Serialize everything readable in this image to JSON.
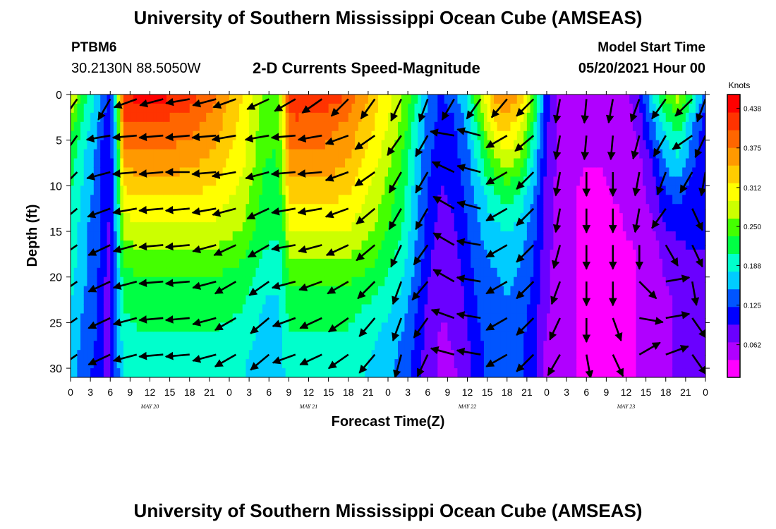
{
  "page": {
    "title_top": "University of Southern Mississippi Ocean Cube (AMSEAS)",
    "title_bottom": "University of Southern Mississippi Ocean Cube (AMSEAS)",
    "station": "PTBM6",
    "coordinates": "30.2130N  88.5050W",
    "product": "2-D Currents Speed-Magnitude",
    "model_start_label": "Model Start Time",
    "model_start_value": "05/20/2021 Hour 00"
  },
  "chart_data": {
    "type": "heatmap",
    "xlabel": "Forecast Time(Z)",
    "ylabel": "Depth (ft)",
    "x_ticks": [
      "0",
      "3",
      "6",
      "9",
      "12",
      "15",
      "18",
      "21",
      "0",
      "3",
      "6",
      "9",
      "12",
      "15",
      "18",
      "21",
      "0",
      "3",
      "6",
      "9",
      "12",
      "15",
      "18",
      "21",
      "0",
      "3",
      "6",
      "9",
      "12",
      "15",
      "18",
      "21",
      "0"
    ],
    "x_range_hours": [
      0,
      96
    ],
    "day_labels": [
      "MAY 20",
      "MAY 21",
      "MAY 22",
      "MAY 23"
    ],
    "day_label_hours": [
      12,
      36,
      60,
      84
    ],
    "y_ticks": [
      0,
      5,
      10,
      15,
      20,
      25,
      30
    ],
    "ylim": [
      31,
      0
    ],
    "colorbar": {
      "unit": "Knots",
      "ticks": [
        "0.438",
        "0.375",
        "0.312",
        "0.250",
        "0.188",
        "0.125",
        "0.062"
      ],
      "tick_values": [
        0.438,
        0.375,
        0.312,
        0.25,
        0.188,
        0.125,
        0.062
      ],
      "range": [
        0.01,
        0.46
      ],
      "colors": [
        "#ff00ff",
        "#b000ff",
        "#6a00ff",
        "#0000ff",
        "#0055ff",
        "#00ccff",
        "#00ffcc",
        "#00ff44",
        "#44ff00",
        "#ccff00",
        "#ffff00",
        "#ffcc00",
        "#ff9900",
        "#ff6600",
        "#ff3300",
        "#ff0000"
      ]
    },
    "depth_levels_ft": [
      0,
      3,
      7,
      11,
      15,
      19,
      23,
      27,
      31
    ],
    "speed_field": {
      "time_hours": [
        0,
        2,
        4,
        5,
        6,
        7,
        8,
        10,
        14,
        18,
        22,
        26,
        29,
        31,
        32,
        33,
        34,
        38,
        42,
        46,
        50,
        52,
        54,
        56,
        58,
        60,
        62,
        64,
        66,
        68,
        70,
        72,
        74,
        76,
        78,
        80,
        82,
        84,
        86,
        88,
        90,
        92,
        94,
        96
      ],
      "speed_knots": [
        [
          0.3,
          0.22,
          0.17,
          0.13,
          0.12,
          0.22,
          0.43,
          0.44,
          0.44,
          0.42,
          0.38,
          0.32,
          0.26,
          0.25,
          0.3,
          0.42,
          0.43,
          0.43,
          0.4,
          0.33,
          0.27,
          0.22,
          0.15,
          0.12,
          0.14,
          0.18,
          0.28,
          0.35,
          0.38,
          0.35,
          0.25,
          0.1,
          0.06,
          0.05,
          0.04,
          0.05,
          0.06,
          0.05,
          0.1,
          0.18,
          0.24,
          0.28,
          0.22,
          0.12
        ],
        [
          0.25,
          0.2,
          0.16,
          0.12,
          0.11,
          0.2,
          0.4,
          0.4,
          0.4,
          0.39,
          0.36,
          0.31,
          0.25,
          0.24,
          0.28,
          0.39,
          0.4,
          0.39,
          0.37,
          0.32,
          0.26,
          0.2,
          0.14,
          0.11,
          0.12,
          0.16,
          0.24,
          0.32,
          0.34,
          0.3,
          0.22,
          0.1,
          0.06,
          0.05,
          0.04,
          0.04,
          0.05,
          0.05,
          0.08,
          0.15,
          0.2,
          0.22,
          0.16,
          0.11
        ],
        [
          0.22,
          0.18,
          0.14,
          0.11,
          0.1,
          0.19,
          0.36,
          0.37,
          0.37,
          0.36,
          0.34,
          0.3,
          0.24,
          0.23,
          0.26,
          0.37,
          0.37,
          0.37,
          0.35,
          0.3,
          0.24,
          0.18,
          0.13,
          0.1,
          0.11,
          0.14,
          0.2,
          0.26,
          0.28,
          0.26,
          0.18,
          0.09,
          0.06,
          0.05,
          0.04,
          0.04,
          0.05,
          0.05,
          0.06,
          0.1,
          0.16,
          0.18,
          0.13,
          0.1
        ],
        [
          0.21,
          0.17,
          0.14,
          0.1,
          0.1,
          0.18,
          0.31,
          0.32,
          0.32,
          0.32,
          0.31,
          0.28,
          0.23,
          0.22,
          0.24,
          0.33,
          0.33,
          0.33,
          0.32,
          0.28,
          0.22,
          0.17,
          0.12,
          0.09,
          0.1,
          0.13,
          0.17,
          0.2,
          0.22,
          0.2,
          0.15,
          0.08,
          0.05,
          0.04,
          0.03,
          0.03,
          0.04,
          0.04,
          0.05,
          0.08,
          0.12,
          0.13,
          0.11,
          0.1
        ],
        [
          0.2,
          0.16,
          0.13,
          0.1,
          0.09,
          0.17,
          0.27,
          0.28,
          0.28,
          0.28,
          0.28,
          0.26,
          0.22,
          0.21,
          0.22,
          0.29,
          0.29,
          0.29,
          0.29,
          0.26,
          0.21,
          0.16,
          0.11,
          0.08,
          0.09,
          0.12,
          0.15,
          0.17,
          0.18,
          0.17,
          0.13,
          0.08,
          0.05,
          0.04,
          0.03,
          0.03,
          0.03,
          0.04,
          0.04,
          0.06,
          0.09,
          0.1,
          0.1,
          0.1
        ],
        [
          0.19,
          0.16,
          0.13,
          0.1,
          0.09,
          0.16,
          0.23,
          0.24,
          0.24,
          0.24,
          0.24,
          0.23,
          0.2,
          0.19,
          0.2,
          0.25,
          0.25,
          0.25,
          0.25,
          0.23,
          0.19,
          0.15,
          0.1,
          0.07,
          0.08,
          0.11,
          0.14,
          0.15,
          0.16,
          0.15,
          0.12,
          0.07,
          0.05,
          0.04,
          0.03,
          0.03,
          0.03,
          0.03,
          0.04,
          0.05,
          0.07,
          0.08,
          0.09,
          0.09
        ],
        [
          0.18,
          0.15,
          0.12,
          0.09,
          0.08,
          0.15,
          0.21,
          0.22,
          0.22,
          0.22,
          0.22,
          0.21,
          0.18,
          0.17,
          0.19,
          0.22,
          0.22,
          0.22,
          0.22,
          0.2,
          0.17,
          0.13,
          0.09,
          0.07,
          0.07,
          0.1,
          0.13,
          0.14,
          0.15,
          0.14,
          0.11,
          0.07,
          0.05,
          0.04,
          0.03,
          0.03,
          0.03,
          0.03,
          0.04,
          0.05,
          0.06,
          0.07,
          0.08,
          0.09
        ],
        [
          0.17,
          0.14,
          0.12,
          0.09,
          0.08,
          0.14,
          0.19,
          0.2,
          0.2,
          0.2,
          0.2,
          0.19,
          0.17,
          0.16,
          0.18,
          0.2,
          0.2,
          0.2,
          0.2,
          0.18,
          0.15,
          0.12,
          0.08,
          0.06,
          0.07,
          0.09,
          0.12,
          0.14,
          0.14,
          0.13,
          0.1,
          0.06,
          0.04,
          0.04,
          0.03,
          0.03,
          0.03,
          0.03,
          0.04,
          0.05,
          0.06,
          0.07,
          0.08,
          0.08
        ],
        [
          0.16,
          0.14,
          0.11,
          0.09,
          0.08,
          0.14,
          0.18,
          0.19,
          0.19,
          0.19,
          0.19,
          0.18,
          0.16,
          0.15,
          0.17,
          0.19,
          0.19,
          0.19,
          0.19,
          0.17,
          0.14,
          0.11,
          0.08,
          0.06,
          0.06,
          0.09,
          0.12,
          0.13,
          0.14,
          0.13,
          0.1,
          0.06,
          0.04,
          0.04,
          0.03,
          0.03,
          0.03,
          0.03,
          0.04,
          0.05,
          0.06,
          0.07,
          0.07,
          0.08
        ]
      ]
    },
    "vector_field": {
      "time_hours": [
        1,
        6,
        10,
        14,
        18,
        22,
        25,
        30,
        34,
        38,
        42,
        46,
        50,
        54,
        58,
        62,
        66,
        70,
        74,
        78,
        82,
        86,
        90,
        94,
        96
      ],
      "depths_ft": [
        0.5,
        4.5,
        8.5,
        12.5,
        16.5,
        20.5,
        24.5,
        28.5
      ],
      "direction_deg": [
        [
          215,
          210,
          250,
          255,
          260,
          255,
          250,
          245,
          240,
          235,
          225,
          215,
          205,
          200,
          210,
          215,
          220,
          225,
          190,
          185,
          190,
          200,
          215,
          225,
          200
        ],
        [
          215,
          260,
          265,
          265,
          265,
          265,
          260,
          260,
          265,
          260,
          250,
          235,
          215,
          210,
          280,
          285,
          240,
          230,
          190,
          185,
          185,
          195,
          210,
          235,
          205
        ],
        [
          225,
          255,
          265,
          265,
          270,
          265,
          260,
          255,
          265,
          265,
          250,
          235,
          210,
          210,
          295,
          285,
          240,
          225,
          190,
          180,
          180,
          190,
          200,
          210,
          190
        ],
        [
          230,
          250,
          260,
          265,
          265,
          260,
          255,
          245,
          260,
          260,
          250,
          230,
          210,
          210,
          300,
          285,
          240,
          225,
          190,
          180,
          180,
          190,
          215,
          155,
          150
        ],
        [
          235,
          245,
          255,
          265,
          265,
          255,
          245,
          240,
          260,
          255,
          245,
          230,
          205,
          215,
          300,
          280,
          240,
          225,
          195,
          180,
          180,
          180,
          150,
          155,
          145
        ],
        [
          235,
          245,
          255,
          265,
          265,
          255,
          240,
          235,
          255,
          250,
          240,
          225,
          200,
          220,
          300,
          280,
          240,
          225,
          200,
          180,
          180,
          135,
          80,
          170,
          140
        ],
        [
          235,
          245,
          255,
          265,
          265,
          255,
          240,
          230,
          250,
          245,
          235,
          220,
          200,
          215,
          290,
          280,
          240,
          225,
          205,
          180,
          160,
          100,
          80,
          145,
          140
        ],
        [
          235,
          245,
          255,
          265,
          265,
          255,
          240,
          230,
          250,
          245,
          235,
          220,
          195,
          205,
          285,
          280,
          240,
          225,
          210,
          170,
          155,
          60,
          70,
          145,
          140
        ]
      ]
    }
  }
}
